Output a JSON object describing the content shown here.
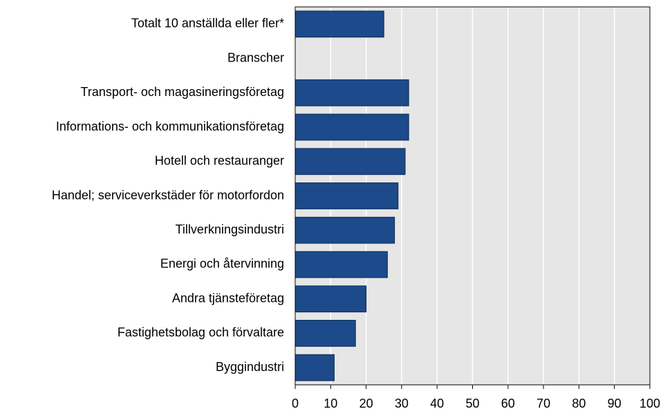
{
  "chart_data": {
    "type": "bar",
    "orientation": "horizontal",
    "categories": [
      "Totalt 10 anställda eller fler*",
      "Branscher",
      "Transport- och magasineringsföretag",
      "Informations- och kommunikationsföretag",
      "Hotell och restauranger",
      "Handel; serviceverkstäder för motorfordon",
      "Tillverkningsindustri",
      "Energi och återvinning",
      "Andra tjänsteföretag",
      "Fastighetsbolag och förvaltare",
      "Byggindustri"
    ],
    "values": [
      25,
      null,
      32,
      32,
      31,
      29,
      28,
      26,
      20,
      17,
      11
    ],
    "color": "#1c4a8a",
    "xlim": [
      0,
      100
    ],
    "xticks": [
      0,
      10,
      20,
      30,
      40,
      50,
      60,
      70,
      80,
      90,
      100
    ],
    "grid": true
  }
}
